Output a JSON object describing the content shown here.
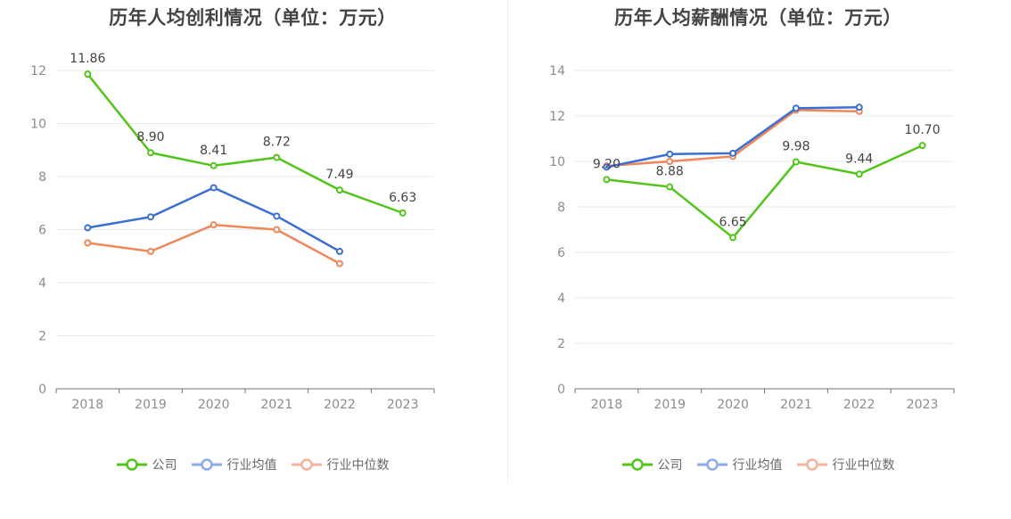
{
  "chart_data": [
    {
      "type": "line",
      "title": "历年人均创利情况（单位：万元）",
      "categories": [
        "2018",
        "2019",
        "2020",
        "2021",
        "2022",
        "2023"
      ],
      "ylim": [
        0,
        12
      ],
      "yticks": [
        0,
        2,
        4,
        6,
        8,
        10,
        12
      ],
      "grid": true,
      "legend_position": "bottom-center",
      "series": [
        {
          "name": "公司",
          "color": "#52c41a",
          "values": [
            11.86,
            8.9,
            8.41,
            8.72,
            7.49,
            6.63
          ],
          "labels": [
            "11.86",
            "8.90",
            "8.41",
            "8.72",
            "7.49",
            "6.63"
          ]
        },
        {
          "name": "行业均值",
          "color": "#3b6fd4",
          "values": [
            6.07,
            6.48,
            7.58,
            6.51,
            5.18,
            null
          ]
        },
        {
          "name": "行业中位数",
          "color": "#f0865a",
          "values": [
            5.5,
            5.18,
            6.18,
            6.0,
            4.72,
            null
          ]
        }
      ]
    },
    {
      "type": "line",
      "title": "历年人均薪酬情况（单位：万元）",
      "categories": [
        "2018",
        "2019",
        "2020",
        "2021",
        "2022",
        "2023"
      ],
      "ylim": [
        0,
        14
      ],
      "yticks": [
        0,
        2,
        4,
        6,
        8,
        10,
        12,
        14
      ],
      "grid": true,
      "legend_position": "bottom-center",
      "series": [
        {
          "name": "公司",
          "color": "#52c41a",
          "values": [
            9.2,
            8.88,
            6.65,
            9.98,
            9.44,
            10.7
          ],
          "labels": [
            "9.20",
            "8.88",
            "6.65",
            "9.98",
            "9.44",
            "10.70"
          ]
        },
        {
          "name": "行业均值",
          "color": "#3b6fd4",
          "values": [
            9.75,
            10.32,
            10.36,
            12.34,
            12.38,
            null
          ]
        },
        {
          "name": "行业中位数",
          "color": "#f0865a",
          "values": [
            9.8,
            10.0,
            10.22,
            12.26,
            12.2,
            null
          ]
        }
      ]
    }
  ],
  "legend_colors": {
    "公司": "#52c41a",
    "行业均值": "#8eaaee",
    "行业中位数": "#f5b39c"
  }
}
